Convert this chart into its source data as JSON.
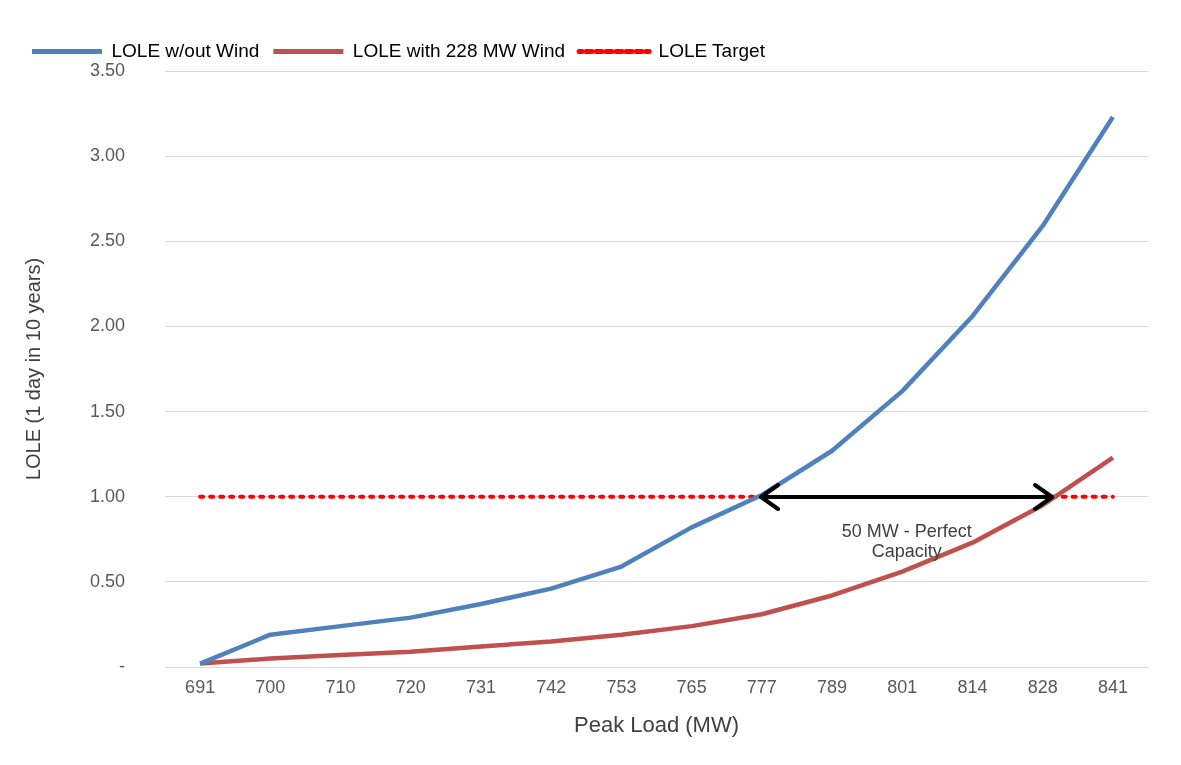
{
  "chart_data": {
    "type": "line",
    "xlabel": "Peak Load (MW)",
    "ylabel": "LOLE (1 day in 10 years)",
    "categories": [
      "691",
      "700",
      "710",
      "720",
      "731",
      "742",
      "753",
      "765",
      "777",
      "789",
      "801",
      "814",
      "828",
      "841"
    ],
    "series": [
      {
        "name": "LOLE w/out Wind",
        "color": "#4f81bd",
        "values": [
          0.02,
          0.19,
          0.24,
          0.29,
          0.37,
          0.46,
          0.59,
          0.82,
          1.01,
          1.27,
          1.62,
          2.06,
          2.59,
          3.23
        ]
      },
      {
        "name": "LOLE with 228 MW Wind",
        "color": "#c0504d",
        "values": [
          0.02,
          0.05,
          0.07,
          0.09,
          0.12,
          0.15,
          0.19,
          0.24,
          0.31,
          0.42,
          0.56,
          0.73,
          0.95,
          1.23
        ]
      },
      {
        "name": "LOLE Target",
        "color": "#ff0000",
        "line_style": "dotted",
        "values": [
          1,
          1,
          1,
          1,
          1,
          1,
          1,
          1,
          1,
          null,
          null,
          null,
          1,
          1
        ]
      }
    ],
    "ylim": [
      0,
      3.5
    ],
    "yticks": [
      {
        "value": 0,
        "label": "-"
      },
      {
        "value": 0.5,
        "label": "0.50"
      },
      {
        "value": 1,
        "label": "1.00"
      },
      {
        "value": 1.5,
        "label": "1.50"
      },
      {
        "value": 2,
        "label": "2.00"
      },
      {
        "value": 2.5,
        "label": "2.50"
      },
      {
        "value": 3,
        "label": "3.00"
      },
      {
        "value": 3.5,
        "label": "3.50"
      }
    ],
    "grid": "y",
    "legend": "top left",
    "marker": "none",
    "annotations": [
      "50 MW - Perfect Capacity"
    ]
  }
}
